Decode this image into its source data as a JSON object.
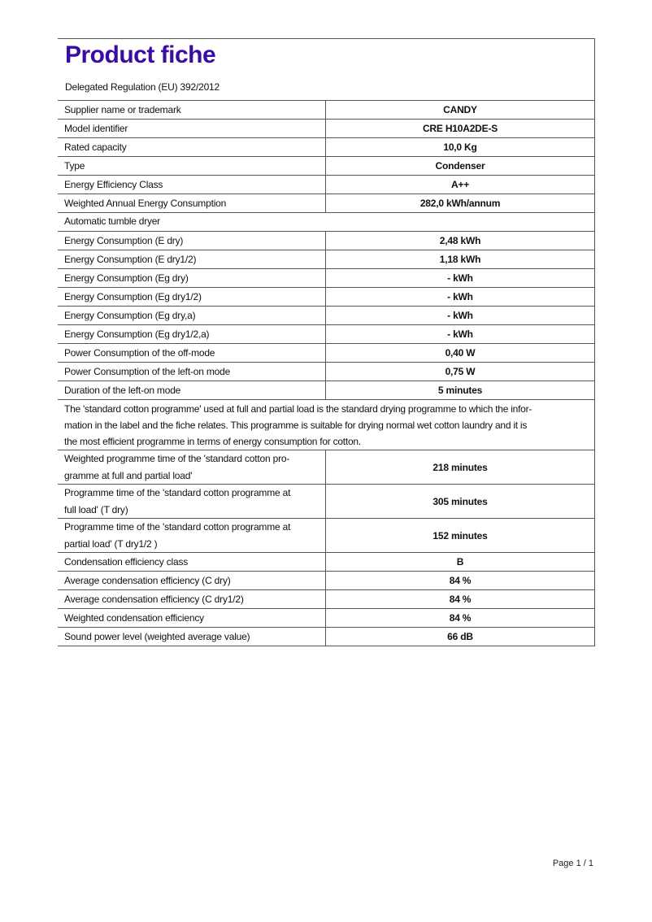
{
  "title": "Product fiche",
  "regulation": "Delegated Regulation (EU) 392/2012",
  "rows_top": [
    {
      "label": "Supplier name or trademark",
      "value": "CANDY"
    },
    {
      "label": "Model identifier",
      "value": "CRE H10A2DE-S"
    },
    {
      "label": "Rated capacity",
      "value": "10,0 Kg"
    },
    {
      "label": "Type",
      "value": "Condenser"
    },
    {
      "label": "Energy Efficiency Class",
      "value": "A++"
    },
    {
      "label": "Weighted Annual Energy Consumption",
      "value": "282,0 kWh/annum"
    }
  ],
  "section_label": "Automatic tumble dryer",
  "rows_mid": [
    {
      "label": "Energy Consumption (E dry)",
      "value": "2,48 kWh"
    },
    {
      "label": "Energy Consumption (E dry1/2)",
      "value": "1,18 kWh"
    },
    {
      "label": "Energy Consumption (Eg dry)",
      "value": "- kWh"
    },
    {
      "label": "Energy Consumption (Eg dry1/2)",
      "value": "- kWh"
    },
    {
      "label": "Energy Consumption (Eg dry,a)",
      "value": "- kWh"
    },
    {
      "label": "Energy Consumption (Eg dry1/2,a)",
      "value": "- kWh"
    },
    {
      "label": "Power Consumption of the off-mode",
      "value": "0,40 W"
    },
    {
      "label": "Power Consumption of the left-on mode",
      "value": "0,75 W"
    },
    {
      "label": "Duration of the left-on mode",
      "value": "5 minutes"
    }
  ],
  "paragraph_lines": [
    "The 'standard cotton programme' used at full and partial load is the standard drying programme to which the infor-",
    "mation in the label and the fiche relates. This programme is suitable for drying normal wet cotton laundry and it is",
    "the most efficient programme in terms of energy consumption for cotton."
  ],
  "rows_time": [
    {
      "label1": "Weighted programme time of the 'standard cotton pro-",
      "label2": "gramme at full and partial load'",
      "value": "218 minutes"
    },
    {
      "label1": "Programme time of the 'standard cotton programme at",
      "label2": "full load' (T dry)",
      "value": "305 minutes"
    },
    {
      "label1": "Programme time of the 'standard cotton programme at",
      "label2": "partial load' (T dry1/2 )",
      "value": "152 minutes"
    }
  ],
  "rows_bottom": [
    {
      "label": "Condensation efficiency class",
      "value": "B"
    },
    {
      "label": "Average condensation efficiency (C dry)",
      "value": "84 %"
    },
    {
      "label": "Average condensation efficiency (C dry1/2)",
      "value": "84 %"
    },
    {
      "label": "Weighted condensation efficiency",
      "value": "84 %"
    },
    {
      "label": "Sound power level (weighted average value)",
      "value": "66 dB"
    }
  ],
  "footer": "Page 1 / 1"
}
